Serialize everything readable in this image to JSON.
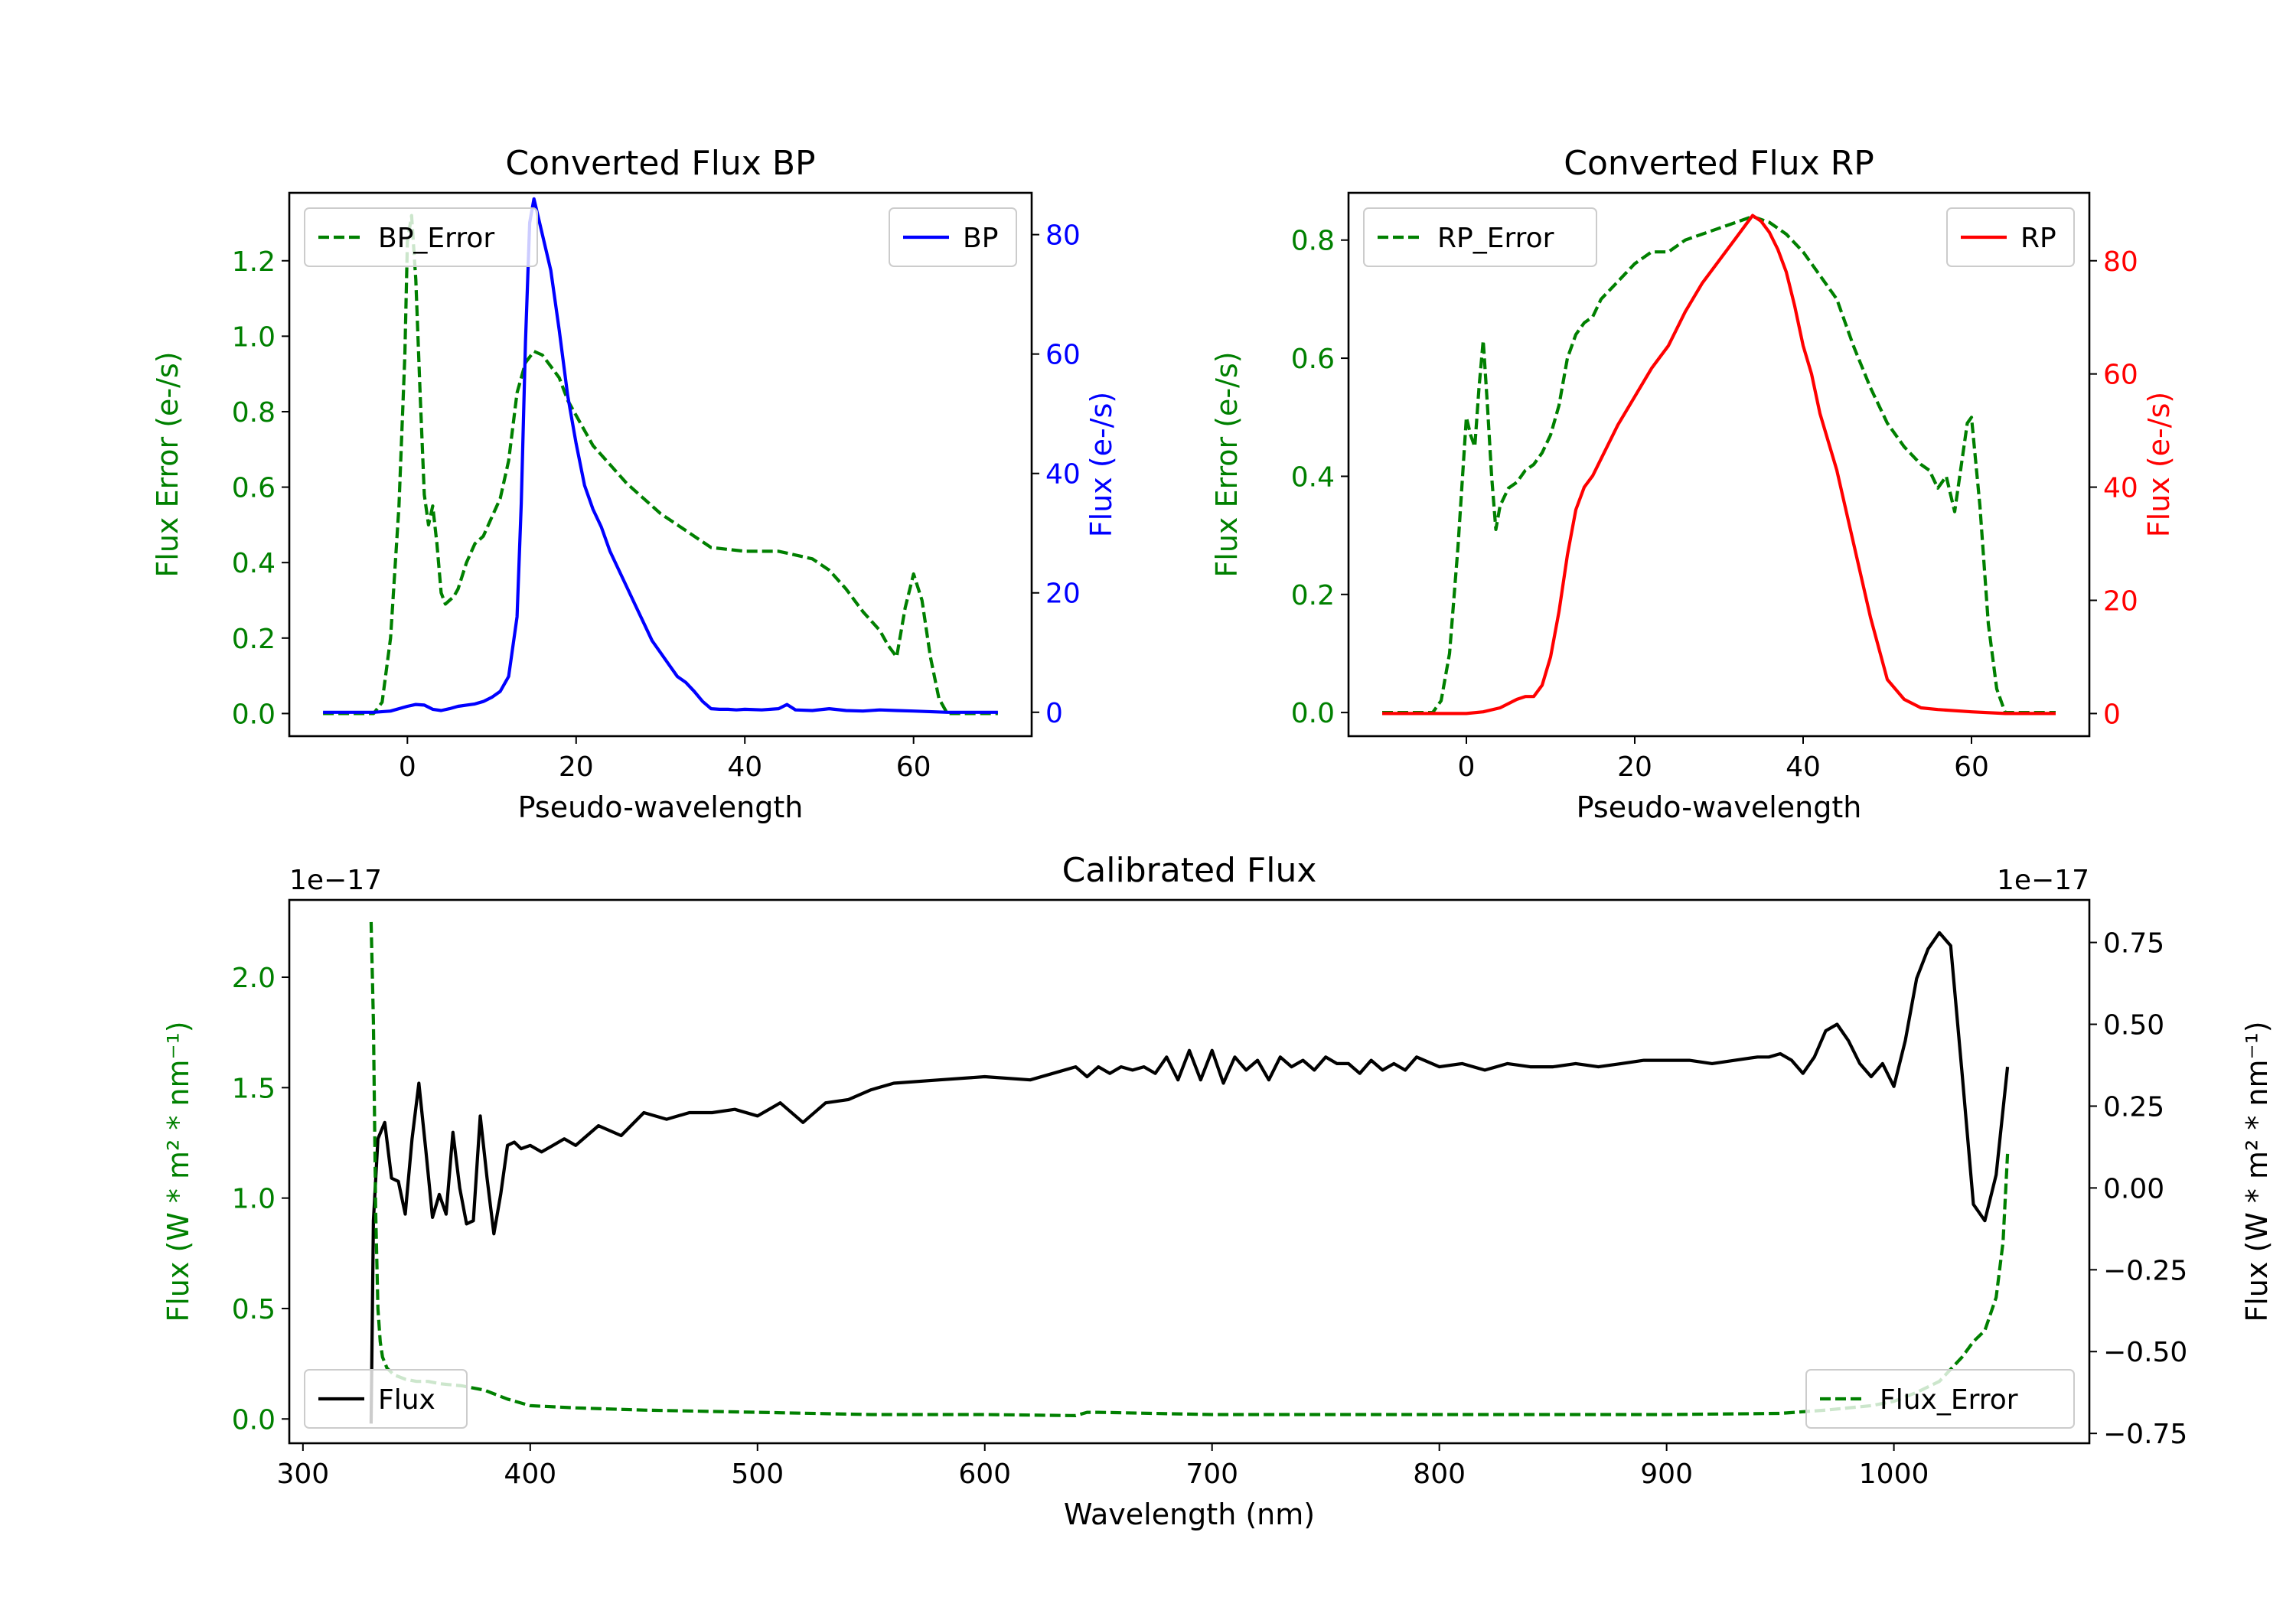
{
  "chart_data": [
    {
      "id": "bp",
      "type": "line",
      "title": "Converted Flux BP",
      "xlabel": "Pseudo-wavelength",
      "xlim": [
        -14,
        74
      ],
      "xticks": [
        0,
        20,
        40,
        60
      ],
      "left_axis": {
        "label": "Flux Error (e-/s)",
        "color": "#008000",
        "ylim": [
          -0.06,
          1.38
        ],
        "ticks": [
          0.0,
          0.2,
          0.4,
          0.6,
          0.8,
          1.0,
          1.2
        ],
        "tick_labels": [
          "0.0",
          "0.2",
          "0.4",
          "0.6",
          "0.8",
          "1.0",
          "1.2"
        ]
      },
      "right_axis": {
        "label": "Flux (e-/s)",
        "color": "#0000ff",
        "ylim": [
          -4,
          87
        ],
        "ticks": [
          0,
          20,
          40,
          60,
          80
        ],
        "tick_labels": [
          "0",
          "20",
          "40",
          "60",
          "80"
        ]
      },
      "series": [
        {
          "name": "BP_Error",
          "axis": "left",
          "color": "#008000",
          "dash": true,
          "x": [
            -10,
            -4,
            -3,
            -2,
            -1,
            -0.3,
            0,
            0.5,
            1,
            1.5,
            2,
            2.5,
            3,
            3.5,
            4,
            4.5,
            5,
            5.5,
            6,
            7,
            8,
            9,
            10,
            11,
            12,
            13,
            14,
            15,
            16,
            17,
            18,
            19,
            20,
            22,
            24,
            26,
            28,
            30,
            32,
            34,
            36,
            40,
            44,
            46,
            48,
            50,
            52,
            54,
            56,
            57,
            58,
            59,
            60,
            61,
            62,
            63,
            64,
            66,
            70
          ],
          "y": [
            0,
            0,
            0.03,
            0.2,
            0.55,
            0.95,
            1.25,
            1.32,
            1.15,
            0.85,
            0.58,
            0.5,
            0.55,
            0.45,
            0.32,
            0.29,
            0.3,
            0.31,
            0.33,
            0.4,
            0.45,
            0.47,
            0.52,
            0.57,
            0.67,
            0.85,
            0.93,
            0.96,
            0.95,
            0.92,
            0.89,
            0.83,
            0.79,
            0.71,
            0.66,
            0.61,
            0.57,
            0.53,
            0.5,
            0.47,
            0.44,
            0.43,
            0.43,
            0.42,
            0.41,
            0.38,
            0.33,
            0.27,
            0.22,
            0.18,
            0.15,
            0.28,
            0.37,
            0.3,
            0.15,
            0.04,
            0,
            0,
            0
          ]
        },
        {
          "name": "BP",
          "axis": "right",
          "color": "#0000ff",
          "dash": false,
          "x": [
            -10,
            -4,
            -2,
            0,
            1,
            2,
            3,
            4,
            5,
            6,
            7,
            8,
            9,
            10,
            11,
            12,
            13,
            13.5,
            14,
            14.5,
            15,
            15.5,
            16,
            17,
            18,
            19,
            20,
            21,
            22,
            23,
            24,
            25,
            26,
            27,
            28,
            29,
            30,
            31,
            32,
            33,
            34,
            35,
            36,
            37,
            38,
            39,
            40,
            42,
            44,
            45,
            46,
            48,
            50,
            52,
            54,
            56,
            58,
            60,
            64,
            70
          ],
          "y": [
            0,
            0,
            0.2,
            1,
            1.3,
            1.2,
            0.5,
            0.3,
            0.6,
            1,
            1.2,
            1.4,
            1.8,
            2.5,
            3.5,
            6,
            16,
            35,
            62,
            82,
            86,
            83,
            80,
            74,
            64,
            53,
            45,
            38,
            34,
            31,
            27,
            24,
            21,
            18,
            15,
            12,
            10,
            8,
            6,
            5,
            3.5,
            1.8,
            0.6,
            0.5,
            0.5,
            0.4,
            0.5,
            0.4,
            0.6,
            1.3,
            0.4,
            0.3,
            0.6,
            0.3,
            0.2,
            0.4,
            0.3,
            0.2,
            0,
            0
          ]
        }
      ],
      "legends": [
        {
          "position": "upper-left",
          "entry": "BP_Error"
        },
        {
          "position": "upper-right",
          "entry": "BP"
        }
      ]
    },
    {
      "id": "rp",
      "type": "line",
      "title": "Converted Flux RP",
      "xlabel": "Pseudo-wavelength",
      "xlim": [
        -14,
        74
      ],
      "xticks": [
        0,
        20,
        40,
        60
      ],
      "left_axis": {
        "label": "Flux Error (e-/s)",
        "color": "#008000",
        "ylim": [
          -0.04,
          0.88
        ],
        "ticks": [
          0.0,
          0.2,
          0.4,
          0.6,
          0.8
        ],
        "tick_labels": [
          "0.0",
          "0.2",
          "0.4",
          "0.6",
          "0.8"
        ]
      },
      "right_axis": {
        "label": "Flux (e-/s)",
        "color": "#ff0000",
        "ylim": [
          -4,
          92
        ],
        "ticks": [
          0,
          20,
          40,
          60,
          80
        ],
        "tick_labels": [
          "0",
          "20",
          "40",
          "60",
          "80"
        ]
      },
      "series": [
        {
          "name": "RP_Error",
          "axis": "left",
          "color": "#008000",
          "dash": true,
          "x": [
            -10,
            -4,
            -3,
            -2,
            -1,
            0,
            0.5,
            1,
            1.5,
            2,
            2.5,
            3,
            3.5,
            4,
            5,
            6,
            7,
            8,
            9,
            10,
            11,
            12,
            13,
            14,
            15,
            16,
            18,
            20,
            22,
            24,
            26,
            28,
            30,
            32,
            34,
            36,
            38,
            40,
            42,
            44,
            46,
            48,
            50,
            52,
            54,
            55,
            56,
            57,
            58,
            59,
            59.5,
            60,
            61,
            62,
            63,
            64,
            66,
            70
          ],
          "y": [
            0,
            0,
            0.02,
            0.1,
            0.28,
            0.5,
            0.47,
            0.45,
            0.55,
            0.63,
            0.52,
            0.4,
            0.31,
            0.35,
            0.38,
            0.39,
            0.41,
            0.42,
            0.44,
            0.47,
            0.52,
            0.6,
            0.64,
            0.66,
            0.67,
            0.7,
            0.73,
            0.76,
            0.78,
            0.78,
            0.8,
            0.81,
            0.82,
            0.83,
            0.84,
            0.83,
            0.81,
            0.78,
            0.74,
            0.7,
            0.62,
            0.55,
            0.49,
            0.45,
            0.42,
            0.41,
            0.38,
            0.4,
            0.34,
            0.44,
            0.49,
            0.5,
            0.35,
            0.15,
            0.04,
            0,
            0,
            0
          ]
        },
        {
          "name": "RP",
          "axis": "right",
          "color": "#ff0000",
          "dash": false,
          "x": [
            -10,
            -4,
            0,
            2,
            4,
            6,
            7,
            8,
            9,
            10,
            11,
            12,
            13,
            14,
            15,
            16,
            18,
            20,
            22,
            24,
            26,
            28,
            30,
            32,
            33,
            34,
            35,
            36,
            37,
            38,
            39,
            40,
            41,
            42,
            44,
            46,
            48,
            50,
            52,
            54,
            56,
            60,
            64,
            70
          ],
          "y": [
            0,
            0,
            0,
            0.3,
            1,
            2.5,
            3,
            3,
            5,
            10,
            18,
            28,
            36,
            40,
            42,
            45,
            51,
            56,
            61,
            65,
            71,
            76,
            80,
            84,
            86,
            88,
            87,
            85,
            82,
            78,
            72,
            65,
            60,
            53,
            43,
            30,
            17,
            6,
            2.5,
            1,
            0.7,
            0.3,
            0,
            0
          ]
        }
      ],
      "legends": [
        {
          "position": "upper-left",
          "entry": "RP_Error"
        },
        {
          "position": "upper-right",
          "entry": "RP"
        }
      ]
    },
    {
      "id": "cal",
      "type": "line",
      "title": "Calibrated Flux",
      "xlabel": "Wavelength (nm)",
      "xlim": [
        294,
        1086
      ],
      "xticks": [
        300,
        400,
        500,
        600,
        700,
        800,
        900,
        1000
      ],
      "left_axis": {
        "label": "Flux (W * m² * nm⁻¹)",
        "color": "#008000",
        "offset_text": "1e−17",
        "ylim": [
          -0.11,
          2.35
        ],
        "ticks": [
          0.0,
          0.5,
          1.0,
          1.5,
          2.0
        ],
        "tick_labels": [
          "0.0",
          "0.5",
          "1.0",
          "1.5",
          "2.0"
        ]
      },
      "right_axis": {
        "label": "Flux (W * m² * nm⁻¹)",
        "color": "#000000",
        "offset_text": "1e−17",
        "ylim": [
          -0.78,
          0.88
        ],
        "ticks": [
          -0.75,
          -0.5,
          -0.25,
          0.0,
          0.25,
          0.5,
          0.75
        ],
        "tick_labels": [
          "−0.75",
          "−0.50",
          "−0.25",
          "0.00",
          "0.25",
          "0.50",
          "0.75"
        ]
      },
      "series": [
        {
          "name": "Flux",
          "axis": "right",
          "color": "#000000",
          "dash": false,
          "x": [
            330,
            331,
            333,
            336,
            339,
            342,
            345,
            348,
            351,
            354,
            357,
            360,
            363,
            366,
            369,
            372,
            375,
            378,
            381,
            384,
            387,
            390,
            393,
            396,
            400,
            405,
            410,
            415,
            420,
            430,
            440,
            450,
            460,
            470,
            480,
            490,
            500,
            510,
            520,
            530,
            540,
            550,
            560,
            580,
            600,
            620,
            640,
            645,
            650,
            655,
            660,
            665,
            670,
            675,
            680,
            685,
            690,
            695,
            700,
            705,
            710,
            715,
            720,
            725,
            730,
            735,
            740,
            745,
            750,
            755,
            760,
            765,
            770,
            775,
            780,
            785,
            790,
            800,
            810,
            820,
            830,
            840,
            850,
            860,
            870,
            880,
            890,
            900,
            910,
            920,
            930,
            940,
            945,
            950,
            955,
            960,
            965,
            970,
            975,
            980,
            985,
            990,
            995,
            1000,
            1005,
            1010,
            1015,
            1020,
            1025,
            1030,
            1035,
            1040,
            1045,
            1050
          ],
          "y": [
            -0.72,
            -0.1,
            0.15,
            0.2,
            0.03,
            0.02,
            -0.08,
            0.15,
            0.32,
            0.12,
            -0.09,
            -0.02,
            -0.08,
            0.17,
            0.0,
            -0.11,
            -0.1,
            0.22,
            0.03,
            -0.14,
            -0.02,
            0.13,
            0.14,
            0.12,
            0.13,
            0.11,
            0.13,
            0.15,
            0.13,
            0.19,
            0.16,
            0.23,
            0.21,
            0.23,
            0.23,
            0.24,
            0.22,
            0.26,
            0.2,
            0.26,
            0.27,
            0.3,
            0.32,
            0.33,
            0.34,
            0.33,
            0.37,
            0.34,
            0.37,
            0.35,
            0.37,
            0.36,
            0.37,
            0.35,
            0.4,
            0.33,
            0.42,
            0.33,
            0.42,
            0.32,
            0.4,
            0.36,
            0.39,
            0.33,
            0.4,
            0.37,
            0.39,
            0.36,
            0.4,
            0.38,
            0.38,
            0.35,
            0.39,
            0.36,
            0.38,
            0.36,
            0.4,
            0.37,
            0.38,
            0.36,
            0.38,
            0.37,
            0.37,
            0.38,
            0.37,
            0.38,
            0.39,
            0.39,
            0.39,
            0.38,
            0.39,
            0.4,
            0.4,
            0.41,
            0.39,
            0.35,
            0.4,
            0.48,
            0.5,
            0.45,
            0.38,
            0.34,
            0.38,
            0.31,
            0.45,
            0.64,
            0.73,
            0.78,
            0.74,
            0.35,
            -0.05,
            -0.1,
            0.04,
            0.37
          ],
          "note": "Flux dips to about -0.06 and -0.11 at a few points"
        },
        {
          "name": "Flux_Error",
          "axis": "left",
          "color": "#008000",
          "dash": true,
          "x": [
            330,
            331,
            332,
            333,
            334,
            335,
            337,
            340,
            345,
            350,
            355,
            360,
            370,
            380,
            390,
            400,
            420,
            450,
            500,
            550,
            600,
            640,
            645,
            650,
            700,
            750,
            800,
            850,
            900,
            950,
            970,
            990,
            1000,
            1010,
            1020,
            1030,
            1035,
            1040,
            1045,
            1048,
            1050
          ],
          "y": [
            2.25,
            1.8,
            0.95,
            0.5,
            0.35,
            0.28,
            0.23,
            0.2,
            0.18,
            0.17,
            0.17,
            0.16,
            0.15,
            0.13,
            0.09,
            0.06,
            0.05,
            0.04,
            0.03,
            0.02,
            0.02,
            0.015,
            0.03,
            0.03,
            0.02,
            0.02,
            0.02,
            0.02,
            0.02,
            0.025,
            0.04,
            0.06,
            0.08,
            0.12,
            0.17,
            0.28,
            0.35,
            0.4,
            0.55,
            0.8,
            1.2
          ]
        }
      ],
      "legends": [
        {
          "position": "lower-left",
          "entry": "Flux"
        },
        {
          "position": "lower-right",
          "entry": "Flux_Error"
        }
      ]
    }
  ]
}
